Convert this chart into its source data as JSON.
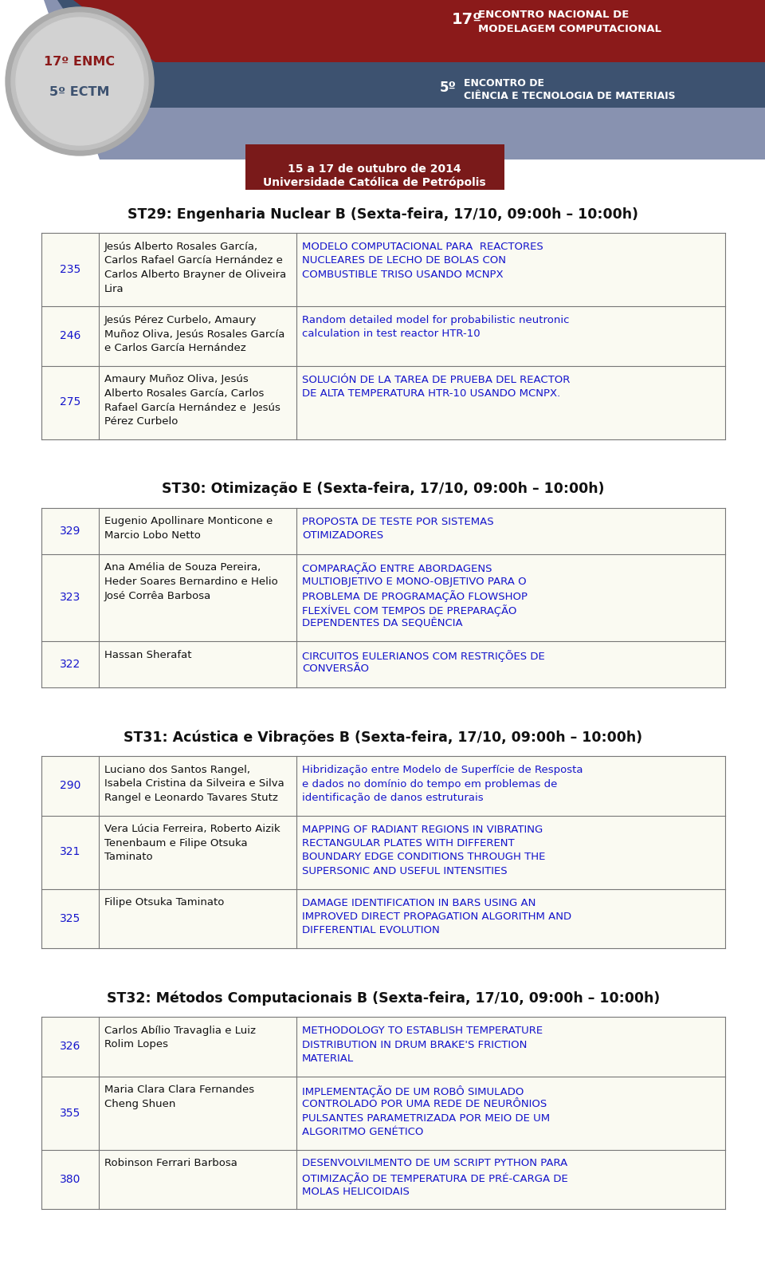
{
  "bg_color": "#ffffff",
  "band1_color": "#8B1A1A",
  "band2_color": "#3D5270",
  "band3_color": "#8892B0",
  "date_box_color": "#7A1A1A",
  "num_link_color": "#1515CC",
  "title_link_color": "#1515CC",
  "author_color": "#111111",
  "border_color": "#777777",
  "table_bg": "#FAFAF2",
  "section_title_color": "#111111",
  "sections": [
    {
      "title": "ST29: Engenharia Nuclear B (Sexta-feira, 17/10, 09:00h – 10:00h)",
      "rows": [
        {
          "number": "235",
          "authors": "Jesús Alberto Rosales García,\nCarlos Rafael García Hernández e\nCarlos Alberto Brayner de Oliveira\nLira",
          "paper_title": "MODELO COMPUTACIONAL PARA  REACTORES\nNUCLEARES DE LECHO DE BOLAS CON\nCOMBUSTIBLE TRISO USANDO MCNPX"
        },
        {
          "number": "246",
          "authors": "Jesús Pérez Curbelo, Amaury\nMuñoz Oliva, Jesús Rosales García\ne Carlos García Hernández",
          "paper_title": "Random detailed model for probabilistic neutronic\ncalculation in test reactor HTR-10"
        },
        {
          "number": "275",
          "authors": "Amaury Muñoz Oliva, Jesús\nAlberto Rosales García, Carlos\nRafael García Hernández e  Jesús\nPérez Curbelo",
          "paper_title": "SOLUCIÓN DE LA TAREA DE PRUEBA DEL REACTOR\nDE ALTA TEMPERATURA HTR-10 USANDO MCNPX."
        }
      ]
    },
    {
      "title": "ST30: Otimização E (Sexta-feira, 17/10, 09:00h – 10:00h)",
      "rows": [
        {
          "number": "329",
          "authors": "Eugenio Apollinare Monticone e\nMarcio Lobo Netto",
          "paper_title": "PROPOSTA DE TESTE POR SISTEMAS\nOTIMIZADORES"
        },
        {
          "number": "323",
          "authors": "Ana Amélia de Souza Pereira,\nHeder Soares Bernardino e Helio\nJosé Corrêa Barbosa",
          "paper_title": "COMPARAÇÃO ENTRE ABORDAGENS\nMULTIOBJETIVO E MONO-OBJETIVO PARA O\nPROBLEMA DE PROGRAMAÇÃO FLOWSHOP\nFLEXÍVEL COM TEMPOS DE PREPARAÇÃO\nDEPENDENTES DA SEQUÊNCIA"
        },
        {
          "number": "322",
          "authors": "Hassan Sherafat",
          "paper_title": "CIRCUITOS EULERIANOS COM RESTRIÇÕES DE\nCONVERSÃO"
        }
      ]
    },
    {
      "title": "ST31: Acústica e Vibrações B (Sexta-feira, 17/10, 09:00h – 10:00h)",
      "rows": [
        {
          "number": "290",
          "authors": "Luciano dos Santos Rangel,\nIsabela Cristina da Silveira e Silva\nRangel e Leonardo Tavares Stutz",
          "paper_title": "Hibridização entre Modelo de Superfície de Resposta\ne dados no domínio do tempo em problemas de\nidentificação de danos estruturais"
        },
        {
          "number": "321",
          "authors": "Vera Lúcia Ferreira, Roberto Aizik\nTenenbaum e Filipe Otsuka\nTaminato",
          "paper_title": "MAPPING OF RADIANT REGIONS IN VIBRATING\nRECTANGULAR PLATES WITH DIFFERENT\nBOUNDARY EDGE CONDITIONS THROUGH THE\nSUPERSONIC AND USEFUL INTENSITIES"
        },
        {
          "number": "325",
          "authors": "Filipe Otsuka Taminato",
          "paper_title": "DAMAGE IDENTIFICATION IN BARS USING AN\nIMPROVED DIRECT PROPAGATION ALGORITHM AND\nDIFFERENTIAL EVOLUTION"
        }
      ]
    },
    {
      "title": "ST32: Métodos Computacionais B (Sexta-feira, 17/10, 09:00h – 10:00h)",
      "rows": [
        {
          "number": "326",
          "authors": "Carlos Abílio Travaglia e Luiz\nRolim Lopes",
          "paper_title": "METHODOLOGY TO ESTABLISH TEMPERATURE\nDISTRIBUTION IN DRUM BRAKE'S FRICTION\nMATERIAL"
        },
        {
          "number": "355",
          "authors": "Maria Clara Clara Fernandes\nCheng Shuen",
          "paper_title": "IMPLEMENTAÇÃO DE UM ROBÔ SIMULADO\nCONTROLADO POR UMA REDE DE NEURÔNIOS\nPULSANTES PARAMETRIZADA POR MEIO DE UM\nALGORITMO GENÉTICO"
        },
        {
          "number": "380",
          "authors": "Robinson Ferrari Barbosa",
          "paper_title": "DESENVOLVILMENTO DE UM SCRIPT PYTHON PARA\nOTIMIZAÇÃO DE TEMPERATURA DE PRÉ-CARGA DE\nMOLAS HELICOIDAIS"
        }
      ]
    }
  ]
}
